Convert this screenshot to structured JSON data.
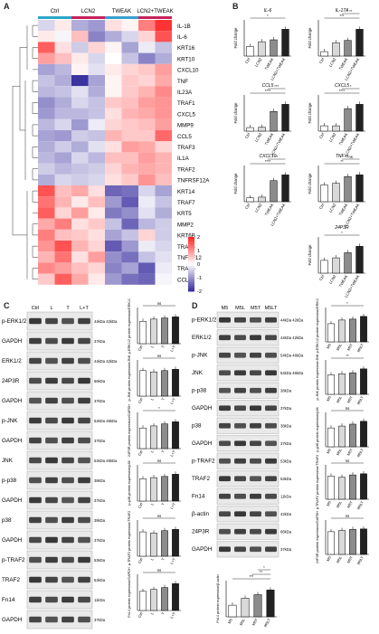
{
  "panels": {
    "A": "A",
    "B": "B",
    "C": "C",
    "D": "D"
  },
  "heatmap": {
    "groups": [
      {
        "label": "Ctrl",
        "color": "#2aa7c9"
      },
      {
        "label": "LCN2",
        "color": "#c6215a"
      },
      {
        "label": "TWEAK",
        "color": "#3a9fd0"
      },
      {
        "label": "LCN2+TWEAK",
        "color": "#c6215a"
      }
    ],
    "genes": [
      "IL-1B",
      "IL-6",
      "KRT16",
      "KRT10",
      "CXCL10",
      "TNF",
      "IL23A",
      "TRAF1",
      "CXCL5",
      "MMP9",
      "CCL5",
      "TRAF3",
      "IL1A",
      "TRAF2",
      "TNFRSF12A",
      "KRT14",
      "TRAF7",
      "KRT5",
      "MMP2",
      "KRT6B",
      "TRAF6",
      "TNFSF12",
      "TRAF5",
      "CCL2"
    ],
    "scale_labels": [
      "2",
      "1",
      "0",
      "-1",
      "-2"
    ],
    "matrix": [
      [
        -0.4,
        0.2,
        -0.8,
        -1.0,
        0.3,
        0.1,
        1.2,
        1.9
      ],
      [
        0.2,
        -0.1,
        0.6,
        -1.2,
        -0.8,
        -0.4,
        0.4,
        1.6
      ],
      [
        1.5,
        0.3,
        -0.5,
        0.4,
        0.1,
        -0.9,
        -0.2,
        -0.6
      ],
      [
        0.9,
        0.6,
        0.2,
        -0.4,
        0.0,
        -0.6,
        -1.2,
        -0.8
      ],
      [
        -0.9,
        -0.7,
        0.1,
        -0.3,
        0.2,
        0.4,
        0.5,
        0.9
      ],
      [
        -0.6,
        -0.8,
        -2.0,
        -0.9,
        0.1,
        0.5,
        0.4,
        0.8
      ],
      [
        -0.7,
        -0.6,
        -0.3,
        -0.8,
        0.1,
        0.5,
        0.7,
        1.1
      ],
      [
        -1.1,
        -0.8,
        -0.4,
        -0.6,
        0.5,
        0.6,
        0.9,
        1.0
      ],
      [
        -1.0,
        -0.7,
        -0.7,
        -0.6,
        0.3,
        0.7,
        0.8,
        1.0
      ],
      [
        -0.7,
        -0.4,
        -1.0,
        -0.2,
        0.4,
        0.5,
        0.6,
        0.9
      ],
      [
        -0.9,
        -1.0,
        -0.5,
        -0.6,
        0.7,
        0.5,
        0.5,
        1.4
      ],
      [
        -0.8,
        -0.5,
        -0.8,
        -0.3,
        0.3,
        0.9,
        0.8,
        0.4
      ],
      [
        -0.7,
        -0.9,
        -0.4,
        -0.7,
        0.6,
        0.6,
        0.9,
        0.7
      ],
      [
        -0.5,
        -0.7,
        -0.6,
        -0.5,
        0.4,
        0.7,
        0.8,
        0.7
      ],
      [
        -0.8,
        -0.4,
        -0.5,
        -0.4,
        0.3,
        0.5,
        1.0,
        0.6
      ],
      [
        1.6,
        0.6,
        0.8,
        0.3,
        -1.5,
        -1.4,
        -0.4,
        -0.9
      ],
      [
        1.3,
        0.7,
        0.2,
        0.6,
        -1.0,
        -1.6,
        -0.2,
        -0.6
      ],
      [
        1.5,
        0.4,
        0.9,
        0.2,
        -1.3,
        -1.1,
        -0.3,
        -0.8
      ],
      [
        0.8,
        1.2,
        0.3,
        0.5,
        -0.6,
        -1.5,
        -0.7,
        -0.5
      ],
      [
        1.2,
        0.6,
        0.5,
        0.3,
        -0.9,
        -0.6,
        0.4,
        -0.5
      ],
      [
        1.0,
        1.6,
        0.7,
        0.4,
        -1.6,
        -1.0,
        -0.2,
        -0.4
      ],
      [
        0.7,
        1.3,
        0.3,
        0.9,
        -1.1,
        -1.4,
        -0.6,
        -0.3
      ],
      [
        1.1,
        0.9,
        0.6,
        0.4,
        -1.2,
        -0.9,
        -1.6,
        -0.2
      ],
      [
        0.5,
        1.5,
        0.8,
        0.2,
        -1.0,
        -1.4,
        -1.5,
        -0.1
      ]
    ]
  },
  "bar_panels_B": [
    {
      "title": "IL-6",
      "ylabel": "Fold change",
      "cats": [
        "Ctrl",
        "LCN2",
        "TWEAK",
        "LCN2+TWEAK"
      ],
      "values": [
        1,
        1.5,
        1.7,
        2.8
      ],
      "stars": [
        "*"
      ]
    },
    {
      "title": "IL-17A",
      "ylabel": "Fold change",
      "cats": [
        "Ctrl",
        "LCN2",
        "TWEAK",
        "LCN2+TWEAK"
      ],
      "values": [
        1,
        3,
        3.5,
        6
      ],
      "stars": [
        "***",
        "**"
      ]
    },
    {
      "title": "CCL5",
      "ylabel": "Fold change",
      "cats": [
        "Ctrl",
        "LCN2",
        "TWEAK",
        "LCN2+TWEAK"
      ],
      "values": [
        1,
        1.1,
        5.5,
        7.5
      ],
      "stars": [
        "****",
        "***"
      ]
    },
    {
      "title": "CXCL5",
      "ylabel": "Fold change",
      "cats": [
        "Ctrl",
        "LCN2",
        "TWEAK",
        "LCN2+TWEAK"
      ],
      "values": [
        1,
        1,
        4.2,
        5
      ],
      "stars": [
        "****",
        "*"
      ]
    },
    {
      "title": "CXCL10",
      "ylabel": "Fold change",
      "cats": [
        "Ctrl",
        "LCN2",
        "TWEAK",
        "LCN2+TWEAK"
      ],
      "values": [
        1,
        1.2,
        5.5,
        7
      ],
      "stars": [
        "****",
        "**"
      ]
    },
    {
      "title": "TNF-α",
      "ylabel": "Fold change",
      "cats": [
        "Ctrl",
        "LCN2",
        "TWEAK",
        "LCN2+TWEAK"
      ],
      "values": [
        1,
        1.1,
        1.5,
        1.6
      ],
      "stars": [
        "**",
        "ns"
      ]
    },
    {
      "title": "24P3R",
      "ylabel": "Fold change",
      "cats": [
        "Ctrl",
        "LCN2",
        "TWEAK",
        "LCN2+TWEAK"
      ],
      "values": [
        1,
        1.2,
        1.6,
        2.1
      ],
      "stars": [
        "*"
      ]
    }
  ],
  "blot_C": {
    "header": [
      "Ctrl",
      "L",
      "T",
      "L+T"
    ],
    "rows": [
      {
        "name": "p-ERK1/2",
        "kda": "44kDa 42kDa"
      },
      {
        "name": "GAPDH",
        "kda": "37kDa"
      },
      {
        "name": "ERK1/2",
        "kda": "44kDa 42kDa"
      },
      {
        "name": "24P3R",
        "kda": "66kDa"
      },
      {
        "name": "GAPDH",
        "kda": "37kDa"
      },
      {
        "name": "p-JNK",
        "kda": "54kDa 46kDa"
      },
      {
        "name": "GAPDH",
        "kda": "37kDa"
      },
      {
        "name": "JNK",
        "kda": "54kDa 46kDa"
      },
      {
        "name": "p-p38",
        "kda": "38kDa"
      },
      {
        "name": "GAPDH",
        "kda": "37kDa"
      },
      {
        "name": "p38",
        "kda": "38kDa"
      },
      {
        "name": "GAPDH",
        "kda": "37kDa"
      },
      {
        "name": "p-TRAF2",
        "kda": "53kDa"
      },
      {
        "name": "TRAF2",
        "kda": "53kDa"
      },
      {
        "name": "Fn14",
        "kda": "11kDa"
      },
      {
        "name": "GAPDH",
        "kda": "37kDa"
      }
    ]
  },
  "bars_C": [
    {
      "ylabel": "p-ERK1/2 protein expression/ERK1/2",
      "cats": [
        "Ctrl",
        "L",
        "T",
        "L+T"
      ],
      "values": [
        1,
        1.1,
        1.15,
        1.2
      ],
      "stars": [
        "ns"
      ]
    },
    {
      "ylabel": "p-JNK protein expression/JNK",
      "cats": [
        "Ctrl",
        "L",
        "T",
        "L+T"
      ],
      "values": [
        1,
        0.95,
        1.0,
        1.05
      ],
      "stars": [
        "ns"
      ]
    },
    {
      "ylabel": "24P3R protein expression/GAPDH",
      "cats": [
        "Ctrl",
        "L",
        "T",
        "L+T"
      ],
      "values": [
        1,
        1.1,
        1.2,
        1.3
      ],
      "stars": [
        "*"
      ]
    },
    {
      "ylabel": "p-p38 protein expression/p38",
      "cats": [
        "Ctrl",
        "L",
        "T",
        "L+T"
      ],
      "values": [
        1,
        1.05,
        1.1,
        1.2
      ],
      "stars": [
        "ns"
      ]
    },
    {
      "ylabel": "p-TRAF2 protein expression/TRAF2",
      "cats": [
        "Ctrl",
        "L",
        "T",
        "L+T"
      ],
      "values": [
        1,
        0.95,
        1.05,
        1.1
      ],
      "stars": [
        "ns"
      ]
    },
    {
      "ylabel": "Fn14 protein expression/GAPDH",
      "cats": [
        "Ctrl",
        "L",
        "T",
        "L+T"
      ],
      "values": [
        1,
        1.1,
        1.2,
        1.4
      ],
      "stars": [
        "ns"
      ]
    }
  ],
  "blot_D": {
    "header": [
      "M5",
      "M5L",
      "M5T",
      "M5LT"
    ],
    "rows": [
      {
        "name": "p-ERK1/2",
        "kda": "44kDa 42kDa"
      },
      {
        "name": "ERK1/2",
        "kda": "44kDa 42kDa"
      },
      {
        "name": "p-JNK",
        "kda": "54kDa 46kDa"
      },
      {
        "name": "JNK",
        "kda": "54kDa 46kDa"
      },
      {
        "name": "p-p38",
        "kda": "38kDa"
      },
      {
        "name": "GAPDH",
        "kda": "37kDa"
      },
      {
        "name": "p38",
        "kda": "38kDa"
      },
      {
        "name": "GAPDH",
        "kda": "37kDa"
      },
      {
        "name": "p-TRAF2",
        "kda": "53kDa"
      },
      {
        "name": "TRAF2",
        "kda": "53kDa"
      },
      {
        "name": "Fn14",
        "kda": "11kDa"
      },
      {
        "name": "β-actin",
        "kda": "42kDa"
      },
      {
        "name": "24P3R",
        "kda": "66kDa"
      },
      {
        "name": "GAPDH",
        "kda": "37kDa"
      }
    ]
  },
  "bars_D": [
    {
      "ylabel": "p-ERK1/2 protein expression/ERK1/2",
      "cats": [
        "M5",
        "M5L",
        "M5T",
        "M5LT"
      ],
      "values": [
        1,
        1.2,
        1.25,
        1.4
      ],
      "stars": [
        "*"
      ]
    },
    {
      "ylabel": "p-JNK protein expression/JNK",
      "cats": [
        "M5",
        "M5L",
        "M5T",
        "M5LT"
      ],
      "values": [
        1,
        1.05,
        1.1,
        1.3
      ],
      "stars": [
        "**"
      ]
    },
    {
      "ylabel": "p-p38 protein expression/p38",
      "cats": [
        "M5",
        "M5L",
        "M5T",
        "M5LT"
      ],
      "values": [
        1,
        1.1,
        1.2,
        1.35
      ],
      "stars": [
        "ns"
      ]
    },
    {
      "ylabel": "p-TRAF2 protein expression/TRAF2",
      "cats": [
        "M5",
        "M5L",
        "M5T",
        "M5LT"
      ],
      "values": [
        1,
        0.95,
        1.05,
        1.1
      ],
      "stars": [
        "ns"
      ]
    },
    {
      "ylabel": "24P3R protein expression/GAPDH",
      "cats": [
        "M5",
        "M5L",
        "M5T",
        "M5LT"
      ],
      "values": [
        1,
        1.05,
        1.1,
        1.12
      ],
      "stars": [
        "ns"
      ]
    }
  ],
  "bar_D_fn14": {
    "ylabel": "Fn14 protein expression/β-actin",
    "cats": [
      "M5",
      "M5L",
      "M5T",
      "M5LT"
    ],
    "values": [
      1,
      1.6,
      1.9,
      2.3
    ],
    "stars": [
      "***",
      "**",
      "*"
    ]
  }
}
